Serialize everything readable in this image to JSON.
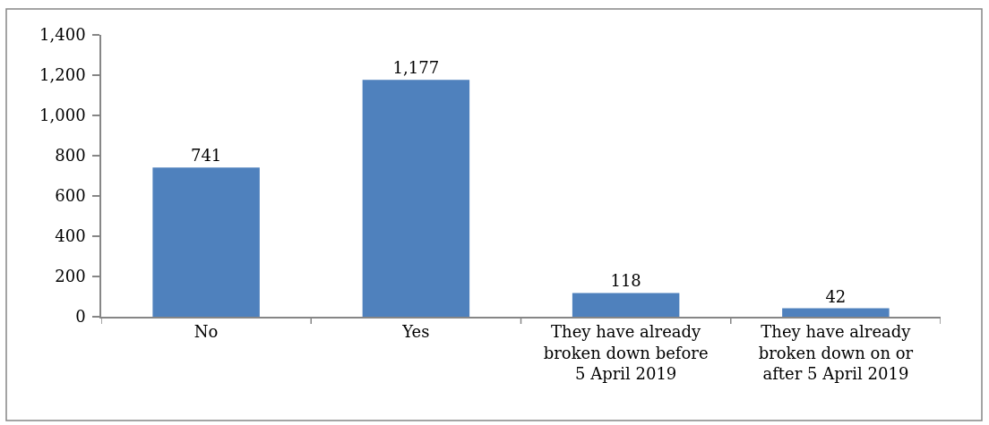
{
  "chart_data": {
    "type": "bar",
    "categories": [
      "No",
      "Yes",
      "They have already broken down before 5 April 2019",
      "They have already broken down on or after 5 April 2019"
    ],
    "values": [
      741,
      1177,
      118,
      42
    ],
    "color": "#4f81bd",
    "value_labels": [
      "741",
      "1,177",
      "118",
      "42"
    ],
    "ylim": [
      0,
      1400
    ],
    "yticks": [
      0,
      200,
      400,
      600,
      800,
      {
        "value": 1000,
        "label": "1,000"
      },
      {
        "value": 1200,
        "label": "1,200"
      },
      {
        "value": 1400,
        "label": "1,400"
      }
    ]
  }
}
